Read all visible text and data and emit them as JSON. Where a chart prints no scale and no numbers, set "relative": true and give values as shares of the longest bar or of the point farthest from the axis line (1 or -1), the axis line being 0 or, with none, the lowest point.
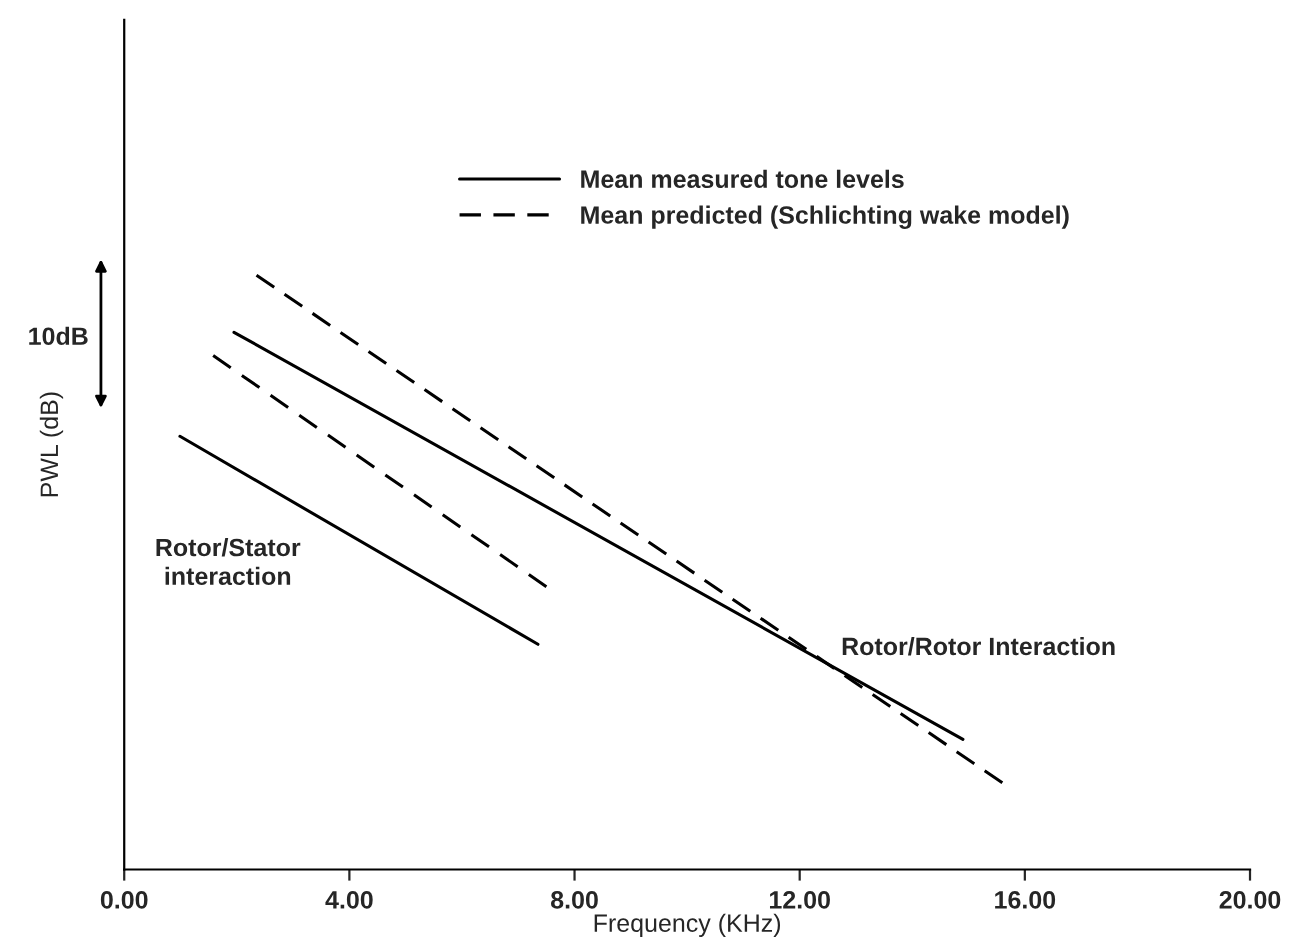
{
  "chart_data": {
    "type": "line",
    "relative": true,
    "xlabel": "Frequency (KHz)",
    "ylabel": "PWL (dB)",
    "xlim": [
      0,
      20
    ],
    "xticks": [
      {
        "value": 0,
        "label": "0.00"
      },
      {
        "value": 4,
        "label": "4.00"
      },
      {
        "value": 8,
        "label": "8.00"
      },
      {
        "value": 12,
        "label": "12.00"
      },
      {
        "value": 16,
        "label": "16.00"
      },
      {
        "value": 20,
        "label": "20.00"
      }
    ],
    "tick_labels": "x",
    "grid": false,
    "legend": "top right",
    "marker": "none",
    "series": [
      {
        "name": "Mean measured tone levels",
        "color": "#000000",
        "line_style": "solid",
        "x": [
          1.95,
          14.9
        ],
        "values": [
          0.904,
          0.219
        ]
      },
      {
        "name": "Mean predicted (Schlichting wake model)",
        "color": "#000000",
        "line_style": "dashed",
        "x": [
          2.35,
          15.6
        ],
        "values": [
          1.0,
          0.146
        ]
      },
      {
        "color": "#000000",
        "line_style": "solid",
        "x": [
          0.99,
          7.35
        ],
        "values": [
          0.729,
          0.379
        ]
      },
      {
        "color": "#000000",
        "line_style": "dashed",
        "x": [
          1.58,
          7.5
        ],
        "values": [
          0.865,
          0.476
        ]
      }
    ],
    "annotations": [
      "Rotor/Stator\ninteraction",
      "Rotor/Rotor Interaction",
      "10dB"
    ]
  }
}
